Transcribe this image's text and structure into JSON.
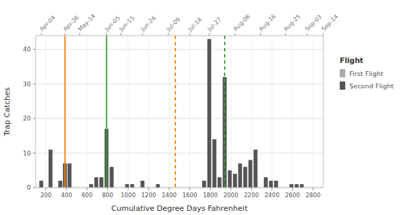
{
  "chart_data": {
    "type": "bar",
    "xlabel": "Cumulative Degree Days Fahrenheit",
    "ylabel": "Trap Catches",
    "color": "#555555",
    "x": [
      155,
      245,
      340,
      385,
      430,
      640,
      690,
      740,
      790,
      840,
      990,
      1040,
      1140,
      1290,
      1740,
      1790,
      1840,
      1890,
      1940,
      1990,
      2040,
      2090,
      2140,
      2190,
      2240,
      2340,
      2390,
      2440,
      2590,
      2640,
      2690
    ],
    "values": [
      2,
      11,
      2,
      7,
      7,
      1,
      3,
      3,
      17,
      6,
      1,
      1,
      2,
      1,
      2,
      43,
      14,
      3,
      32,
      5,
      4,
      7,
      6,
      8,
      11,
      3,
      2,
      2,
      1,
      1,
      1
    ],
    "xlim": [
      100,
      2900
    ],
    "xticks": [
      200,
      400,
      600,
      800,
      1000,
      1200,
      1400,
      1600,
      1800,
      2000,
      2200,
      2400,
      2600,
      2800
    ],
    "ylim": [
      0,
      44
    ],
    "yticks": [
      0,
      10,
      20,
      30,
      40
    ],
    "x2ticks": [
      {
        "value": 155,
        "label": "Apr-04"
      },
      {
        "value": 385,
        "label": "Apr-26"
      },
      {
        "value": 530,
        "label": "May-14"
      },
      {
        "value": 790,
        "label": "Jun-05"
      },
      {
        "value": 930,
        "label": "Jun-15"
      },
      {
        "value": 1140,
        "label": "Jun-26"
      },
      {
        "value": 1390,
        "label": "Jul-09"
      },
      {
        "value": 1600,
        "label": "Jul-18"
      },
      {
        "value": 1790,
        "label": "Jul-27"
      },
      {
        "value": 2040,
        "label": "Aug-06"
      },
      {
        "value": 2290,
        "label": "Aug-16"
      },
      {
        "value": 2530,
        "label": "Aug-25"
      },
      {
        "value": 2740,
        "label": "Sep-03"
      },
      {
        "value": 2900,
        "label": "Sep-14"
      }
    ],
    "vlines": [
      {
        "x": 385,
        "color": "#FF7F00",
        "line_style": "solid"
      },
      {
        "x": 790,
        "color": "#33A02C",
        "line_style": "solid"
      },
      {
        "x": 1460,
        "color": "#FF7F00",
        "line_style": "dashed"
      },
      {
        "x": 1940,
        "color": "#33A02C",
        "line_style": "dashed"
      }
    ],
    "grid": true,
    "legend": "right",
    "legend_title": "Flight",
    "legend_items": [
      {
        "name": "First Flight",
        "color": "#aaaaaa"
      },
      {
        "name": "Second Flight",
        "color": "#555555"
      }
    ]
  }
}
